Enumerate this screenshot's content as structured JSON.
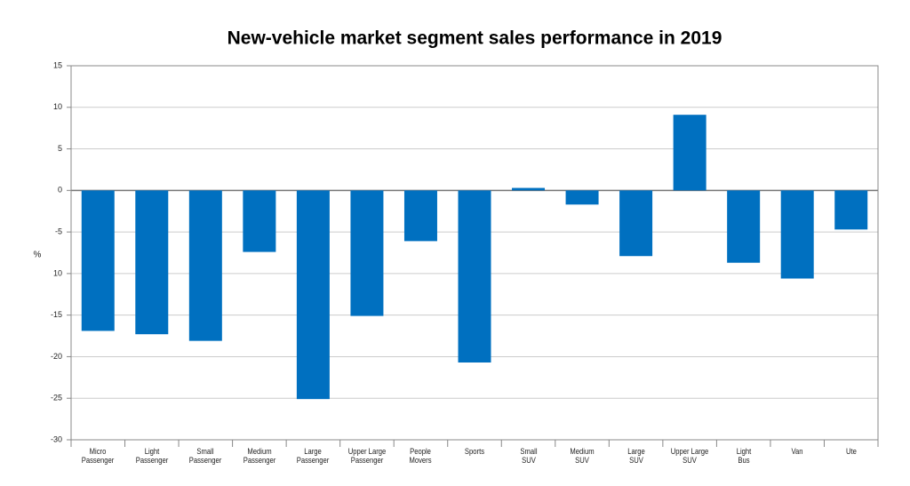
{
  "chart_data": {
    "type": "bar",
    "title": "New-vehicle market segment sales performance in 2019",
    "ylabel": "%",
    "categories": [
      "Micro\nPassenger",
      "Light\nPassenger",
      "Small\nPassenger",
      "Medium\nPassenger",
      "Large\nPassenger",
      "Upper Large\nPassenger",
      "People\nMovers",
      "Sports",
      "Small\nSUV",
      "Medium\nSUV",
      "Large\nSUV",
      "Upper Large\nSUV",
      "Light\nBus",
      "Van",
      "Ute"
    ],
    "values": [
      -16.9,
      -17.3,
      -18.1,
      -7.4,
      -25.1,
      -15.1,
      -6.1,
      -20.7,
      0.3,
      -1.7,
      -7.9,
      9.1,
      -8.7,
      -10.6,
      -4.7
    ],
    "color": "#0070c0",
    "ylim": [
      -30,
      15
    ],
    "yticks": [
      15,
      10,
      5,
      0,
      -5,
      {
        "value": -10,
        "label": "10"
      },
      -15,
      -20,
      -25,
      -30
    ],
    "grid": true
  }
}
